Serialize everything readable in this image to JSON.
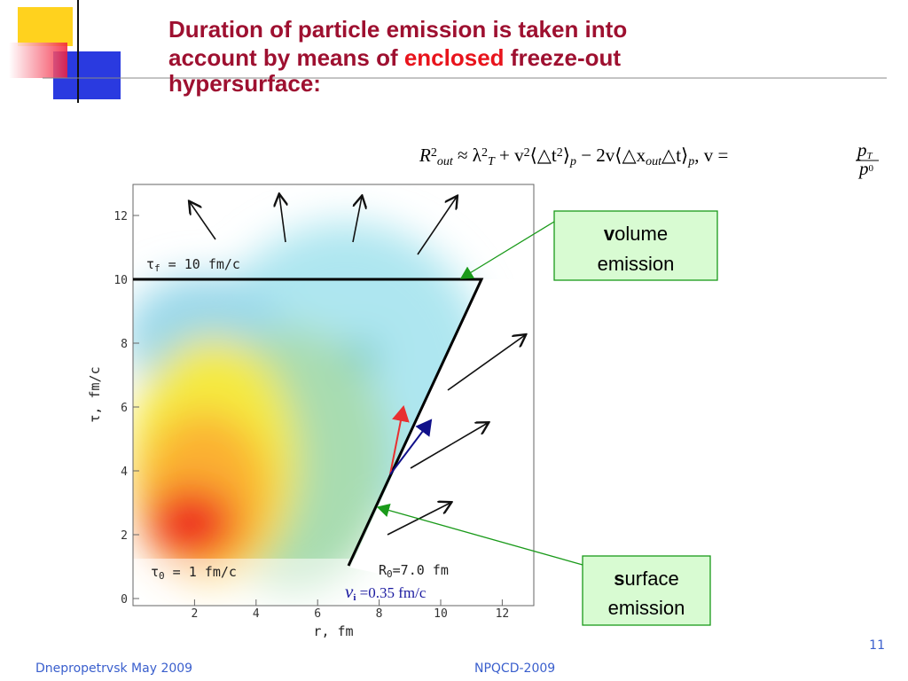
{
  "title": {
    "before": "Duration of particle emission is taken into",
    "line2a": "account by means  of ",
    "highlight": "enclosed",
    "line2b": " freeze-out",
    "line3": "hypersurface:"
  },
  "formula": {
    "tokens": [
      {
        "t": "R",
        "s": "it"
      },
      {
        "t": "2",
        "s": "sup"
      },
      {
        "t": "out",
        "s": "sub"
      },
      {
        "t": " ≈ λ",
        "s": "n"
      },
      {
        "t": "2",
        "s": "sup"
      },
      {
        "t": "T",
        "s": "sub"
      },
      {
        "t": " + v",
        "s": "n"
      },
      {
        "t": "2",
        "s": "sup"
      },
      {
        "t": "⟨△t",
        "s": "n"
      },
      {
        "t": "2",
        "s": "sup"
      },
      {
        "t": "⟩",
        "s": "n"
      },
      {
        "t": "p",
        "s": "sub"
      },
      {
        "t": " − 2v⟨△x",
        "s": "n"
      },
      {
        "t": "out",
        "s": "sub"
      },
      {
        "t": "△t⟩",
        "s": "n"
      },
      {
        "t": "p",
        "s": "sub"
      },
      {
        "t": ", v = ",
        "s": "n"
      }
    ],
    "fraction": {
      "num": [
        "p",
        "T"
      ],
      "den": [
        "p",
        "0"
      ]
    }
  },
  "plot": {
    "yticks": [
      0,
      2,
      4,
      6,
      8,
      10,
      12
    ],
    "xticks": [
      2,
      4,
      6,
      8,
      10,
      12
    ],
    "xlabel": "r, fm",
    "ylabel": "τ, fm/c",
    "annotations": [
      [
        "τ",
        "f",
        " = 10 fm/c"
      ],
      [
        "τ",
        "0",
        " = 1 fm/c"
      ],
      [
        "R",
        "0",
        "=7.0 fm"
      ],
      [
        "v",
        "i",
        " =0.35 fm/c"
      ]
    ]
  },
  "callouts": [
    [
      "v",
      "olume",
      "emission"
    ],
    [
      "s",
      "urface",
      "emission"
    ]
  ],
  "footer": {
    "left": "Dnepropetrvsk May 2009",
    "center": "NPQCD-2009",
    "page": "11"
  }
}
